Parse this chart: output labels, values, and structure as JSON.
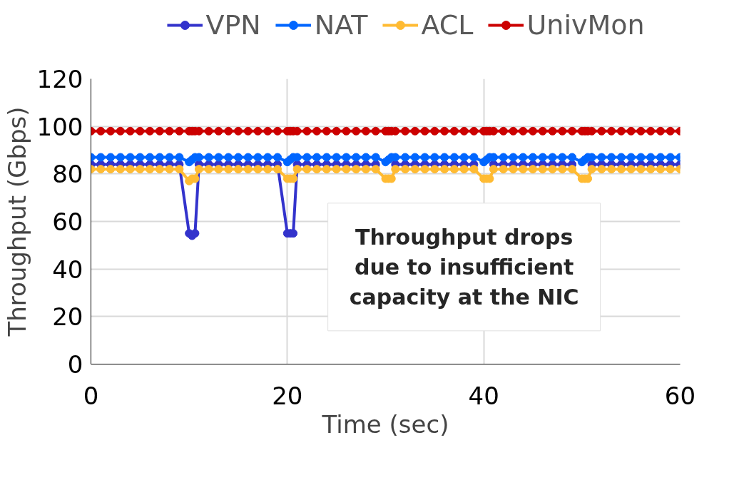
{
  "chart_data": {
    "type": "line",
    "xlabel": "Time (sec)",
    "ylabel": "Throughput (Gbps)",
    "x": [
      0,
      1,
      2,
      3,
      4,
      5,
      6,
      7,
      8,
      9,
      10,
      10.3,
      10.6,
      11,
      12,
      13,
      14,
      15,
      16,
      17,
      18,
      19,
      20,
      20.3,
      20.6,
      21,
      22,
      23,
      24,
      25,
      26,
      27,
      28,
      29,
      30,
      30.3,
      30.6,
      31,
      32,
      33,
      34,
      35,
      36,
      37,
      38,
      39,
      40,
      40.3,
      40.6,
      41,
      42,
      43,
      44,
      45,
      46,
      47,
      48,
      49,
      50,
      50.3,
      50.6,
      51,
      52,
      53,
      54,
      55,
      56,
      57,
      58,
      59,
      60
    ],
    "series": [
      {
        "name": "VPN",
        "color": "#3333cc",
        "values": [
          84,
          84,
          84,
          84,
          84,
          84,
          84,
          84,
          84,
          84,
          55,
          54,
          55,
          84,
          84,
          84,
          84,
          84,
          84,
          84,
          84,
          84,
          55,
          55,
          55,
          84,
          84,
          84,
          84,
          84,
          84,
          84,
          84,
          84,
          null,
          null,
          null,
          84,
          84,
          84,
          84,
          84,
          84,
          84,
          84,
          84,
          null,
          null,
          null,
          84,
          84,
          84,
          84,
          84,
          84,
          84,
          84,
          84,
          null,
          null,
          null,
          84,
          84,
          84,
          84,
          84,
          84,
          84,
          84,
          84,
          84
        ]
      },
      {
        "name": "NAT",
        "color": "#0066ff",
        "values": [
          87,
          87,
          87,
          87,
          87,
          87,
          87,
          87,
          87,
          87,
          85,
          86,
          87,
          87,
          87,
          87,
          87,
          87,
          87,
          87,
          87,
          87,
          85,
          86,
          87,
          87,
          87,
          87,
          87,
          87,
          87,
          87,
          87,
          87,
          85,
          86,
          87,
          87,
          87,
          87,
          87,
          87,
          87,
          87,
          87,
          87,
          85,
          86,
          87,
          87,
          87,
          87,
          87,
          87,
          87,
          87,
          87,
          87,
          85,
          86,
          87,
          87,
          87,
          87,
          87,
          87,
          87,
          87,
          87,
          87,
          87
        ]
      },
      {
        "name": "ACL",
        "color": "#ffbb33",
        "values": [
          82,
          82,
          82,
          82,
          82,
          82,
          82,
          82,
          82,
          82,
          77,
          78,
          78,
          82,
          82,
          82,
          82,
          82,
          82,
          82,
          82,
          82,
          78,
          78,
          78,
          82,
          82,
          82,
          82,
          82,
          82,
          82,
          82,
          82,
          78,
          78,
          78,
          82,
          82,
          82,
          82,
          82,
          82,
          82,
          82,
          82,
          78,
          78,
          78,
          82,
          82,
          82,
          82,
          82,
          82,
          82,
          82,
          82,
          78,
          78,
          78,
          82,
          82,
          82,
          82,
          82,
          82,
          82,
          82,
          82,
          82
        ]
      },
      {
        "name": "UnivMon",
        "color": "#cc0000",
        "values": [
          98,
          98,
          98,
          98,
          98,
          98,
          98,
          98,
          98,
          98,
          98,
          98,
          98,
          98,
          98,
          98,
          98,
          98,
          98,
          98,
          98,
          98,
          98,
          98,
          98,
          98,
          98,
          98,
          98,
          98,
          98,
          98,
          98,
          98,
          98,
          98,
          98,
          98,
          98,
          98,
          98,
          98,
          98,
          98,
          98,
          98,
          98,
          98,
          98,
          98,
          98,
          98,
          98,
          98,
          98,
          98,
          98,
          98,
          98,
          98,
          98,
          98,
          98,
          98,
          98,
          98,
          98,
          98,
          98,
          98,
          98
        ]
      }
    ],
    "xlim": [
      0,
      60
    ],
    "xticks": [
      0,
      20,
      40,
      60
    ],
    "ylim": [
      0,
      120
    ],
    "yticks": [
      0,
      20,
      40,
      60,
      80,
      100,
      120
    ],
    "grid": true,
    "legend": "top",
    "marker": "circle",
    "line_style": "solid",
    "annotations": [
      "Throughput drops\ndue to insufficient\ncapacity at the NIC"
    ]
  }
}
